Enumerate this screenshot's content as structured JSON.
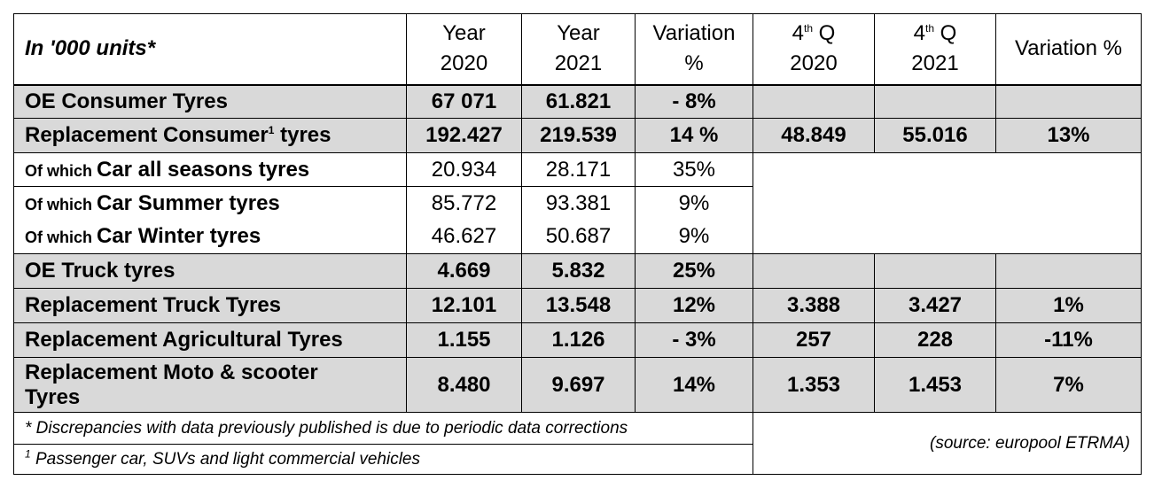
{
  "header": {
    "unit_label": "In '000 units*",
    "col_year2020_line1": "Year",
    "col_year2020_line2": "2020",
    "col_year2021_line1": "Year",
    "col_year2021_line2": "2021",
    "col_variation_line1": "Variation",
    "col_variation_line2": "%",
    "col_q2020_line1": "4",
    "col_q2020_sup": "th",
    "col_q2020_q": " Q",
    "col_q2020_line2": "2020",
    "col_q2021_line1": "4",
    "col_q2021_sup": "th",
    "col_q2021_q": " Q",
    "col_q2021_line2": "2021",
    "col_variation2": "Variation %"
  },
  "rows": {
    "oe_consumer": {
      "label": "OE Consumer Tyres",
      "y2020": "67 071",
      "y2021": "61.821",
      "var": "- 8%",
      "q2020": "",
      "q2021": "",
      "qvar": ""
    },
    "repl_consumer": {
      "label_pre": "Replacement Consumer",
      "label_sup": "1",
      "label_post": " tyres",
      "y2020": "192.427",
      "y2021": "219.539",
      "var": "14 %",
      "q2020": "48.849",
      "q2021": "55.016",
      "qvar": "13%"
    },
    "all_seasons": {
      "prefix": "Of which ",
      "label": "Car all seasons tyres",
      "y2020": "20.934",
      "y2021": "28.171",
      "var": "35%"
    },
    "summer": {
      "prefix": "Of which ",
      "label": "Car Summer tyres",
      "y2020": "85.772",
      "y2021": "93.381",
      "var": "9%"
    },
    "winter": {
      "prefix": "Of which ",
      "label": "Car Winter tyres",
      "y2020": "46.627",
      "y2021": "50.687",
      "var": "9%"
    },
    "oe_truck": {
      "label": "OE Truck tyres",
      "y2020": "4.669",
      "y2021": "5.832",
      "var": "25%",
      "q2020": "",
      "q2021": "",
      "qvar": ""
    },
    "repl_truck": {
      "label": "Replacement Truck Tyres",
      "y2020": "12.101",
      "y2021": "13.548",
      "var": "12%",
      "q2020": "3.388",
      "q2021": "3.427",
      "qvar": "1%"
    },
    "repl_agri": {
      "label": "Replacement Agricultural Tyres",
      "y2020": "1.155",
      "y2021": "1.126",
      "var": "- 3%",
      "q2020": "257",
      "q2021": "228",
      "qvar": "-11%"
    },
    "repl_moto": {
      "label_line1": "Replacement Moto & scooter",
      "label_line2": "Tyres",
      "y2020": "8.480",
      "y2021": "9.697",
      "var": "14%",
      "q2020": "1.353",
      "q2021": "1.453",
      "qvar": "7%"
    }
  },
  "notes": {
    "discrepancies": "* Discrepancies with data previously published is due to periodic data corrections",
    "footnote_mark": "1",
    "footnote_text": " Passenger car, SUVs and light commercial vehicles",
    "source": "(source: europool ETRMA)"
  }
}
